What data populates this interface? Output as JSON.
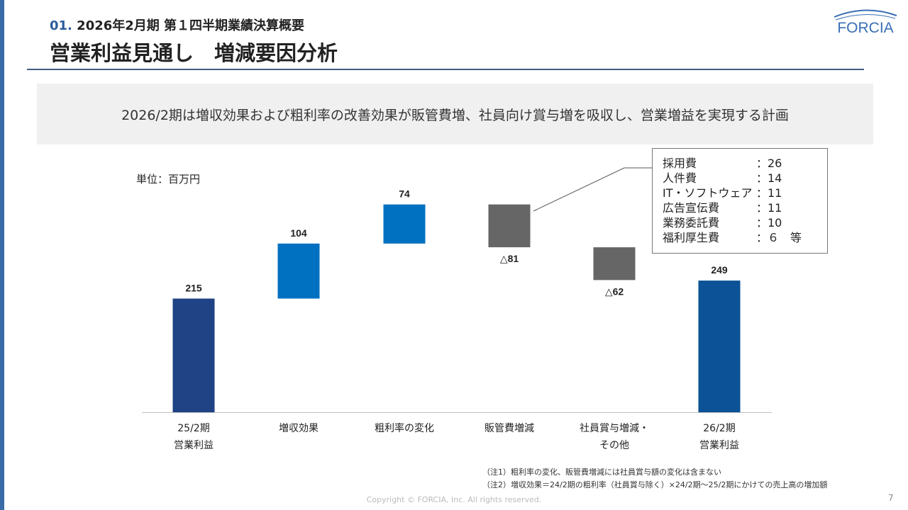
{
  "header": {
    "section_number": "01.",
    "subtitle": "2026年2月期 第１四半期業績決算概要",
    "title": "営業利益見通し　増減要因分析",
    "logo_text": "FORCIA"
  },
  "summary": "2026/2期は増収効果および粗利率の改善効果が販管費増、社員向け賞与増を吸収し、営業増益を実現する計画",
  "unit_label": "単位：百万円",
  "chart_data": {
    "type": "bar",
    "subtype": "waterfall",
    "categories": [
      [
        "25/2期",
        "営業利益"
      ],
      [
        "増収効果"
      ],
      [
        "粗利率の変化"
      ],
      [
        "販管費増減"
      ],
      [
        "社員賞与増減・",
        "その他"
      ],
      [
        "26/2期",
        "営業利益"
      ]
    ],
    "values": [
      215,
      104,
      74,
      -81,
      -62,
      249
    ],
    "data_labels": [
      "215",
      "104",
      "74",
      "△81",
      "△62",
      "249"
    ],
    "kinds": [
      "total",
      "increase",
      "increase",
      "decrease",
      "decrease",
      "total"
    ],
    "colors": {
      "start_total": "#1f4384",
      "increase": "#0070c0",
      "decrease": "#666666",
      "end_total": "#0b5296"
    }
  },
  "callout": {
    "items": [
      {
        "label": "採用費",
        "value": "：26"
      },
      {
        "label": "人件費",
        "value": "：14"
      },
      {
        "label": "IT・ソフトウェア",
        "value": "：11"
      },
      {
        "label": "広告宣伝費",
        "value": "：11"
      },
      {
        "label": "業務委託費",
        "value": "：10"
      },
      {
        "label": "福利厚生費",
        "value": "：６　等"
      }
    ]
  },
  "notes": [
    "（注1）粗利率の変化、販管費増減には社員賞与額の変化は含まない",
    "（注2）増収効果＝24/2期の粗利率（社員賞与除く）×24/2期～25/2期にかけての売上高の増加額"
  ],
  "copyright": "Copyright © FORCIA, Inc. All rights reserved.",
  "page_number": "7"
}
